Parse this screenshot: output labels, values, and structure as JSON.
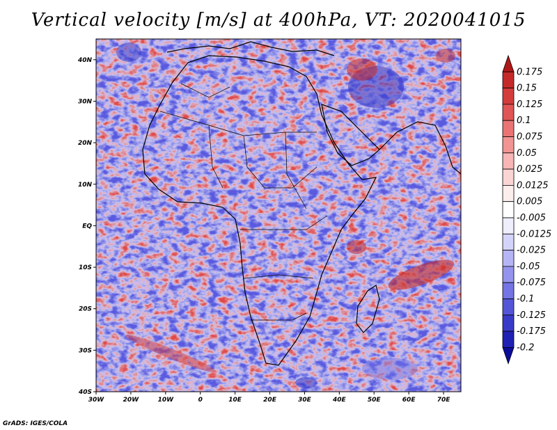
{
  "title": "Vertical velocity [m/s] at 400hPa, VT: 2020041015",
  "credit": "GrADS: IGES/COLA",
  "map": {
    "lon_range": [
      -30,
      75
    ],
    "lat_range": [
      -40,
      45
    ],
    "lon_ticks": [
      "30W",
      "20W",
      "10W",
      "0",
      "10E",
      "20E",
      "30E",
      "40E",
      "50E",
      "60E",
      "70E"
    ],
    "lat_ticks": [
      "40N",
      "30N",
      "20N",
      "10N",
      "EQ",
      "10S",
      "20S",
      "30S",
      "40S"
    ]
  },
  "colorbar": {
    "labels": [
      "0.175",
      "0.15",
      "0.125",
      "0.1",
      "0.075",
      "0.05",
      "0.025",
      "0.0125",
      "0.005",
      "-0.005",
      "-0.0125",
      "-0.025",
      "-0.05",
      "-0.075",
      "-0.1",
      "-0.125",
      "-0.175",
      "-0.2"
    ],
    "colors": [
      "#b01818",
      "#c42a2a",
      "#d43c3c",
      "#e05555",
      "#ea7474",
      "#f29494",
      "#f7b5b5",
      "#fbd4d4",
      "#fdeeee",
      "#ffffff",
      "#eeeefd",
      "#d4d4fb",
      "#b5b5f5",
      "#9494ee",
      "#7474e4",
      "#5555d8",
      "#3a3ac8",
      "#2020b4",
      "#0c0c9a"
    ]
  },
  "colors": {
    "land_outline": "#000000",
    "positive": "#d43c3c",
    "negative": "#4a4ad4",
    "neutral": "#ffffff"
  }
}
